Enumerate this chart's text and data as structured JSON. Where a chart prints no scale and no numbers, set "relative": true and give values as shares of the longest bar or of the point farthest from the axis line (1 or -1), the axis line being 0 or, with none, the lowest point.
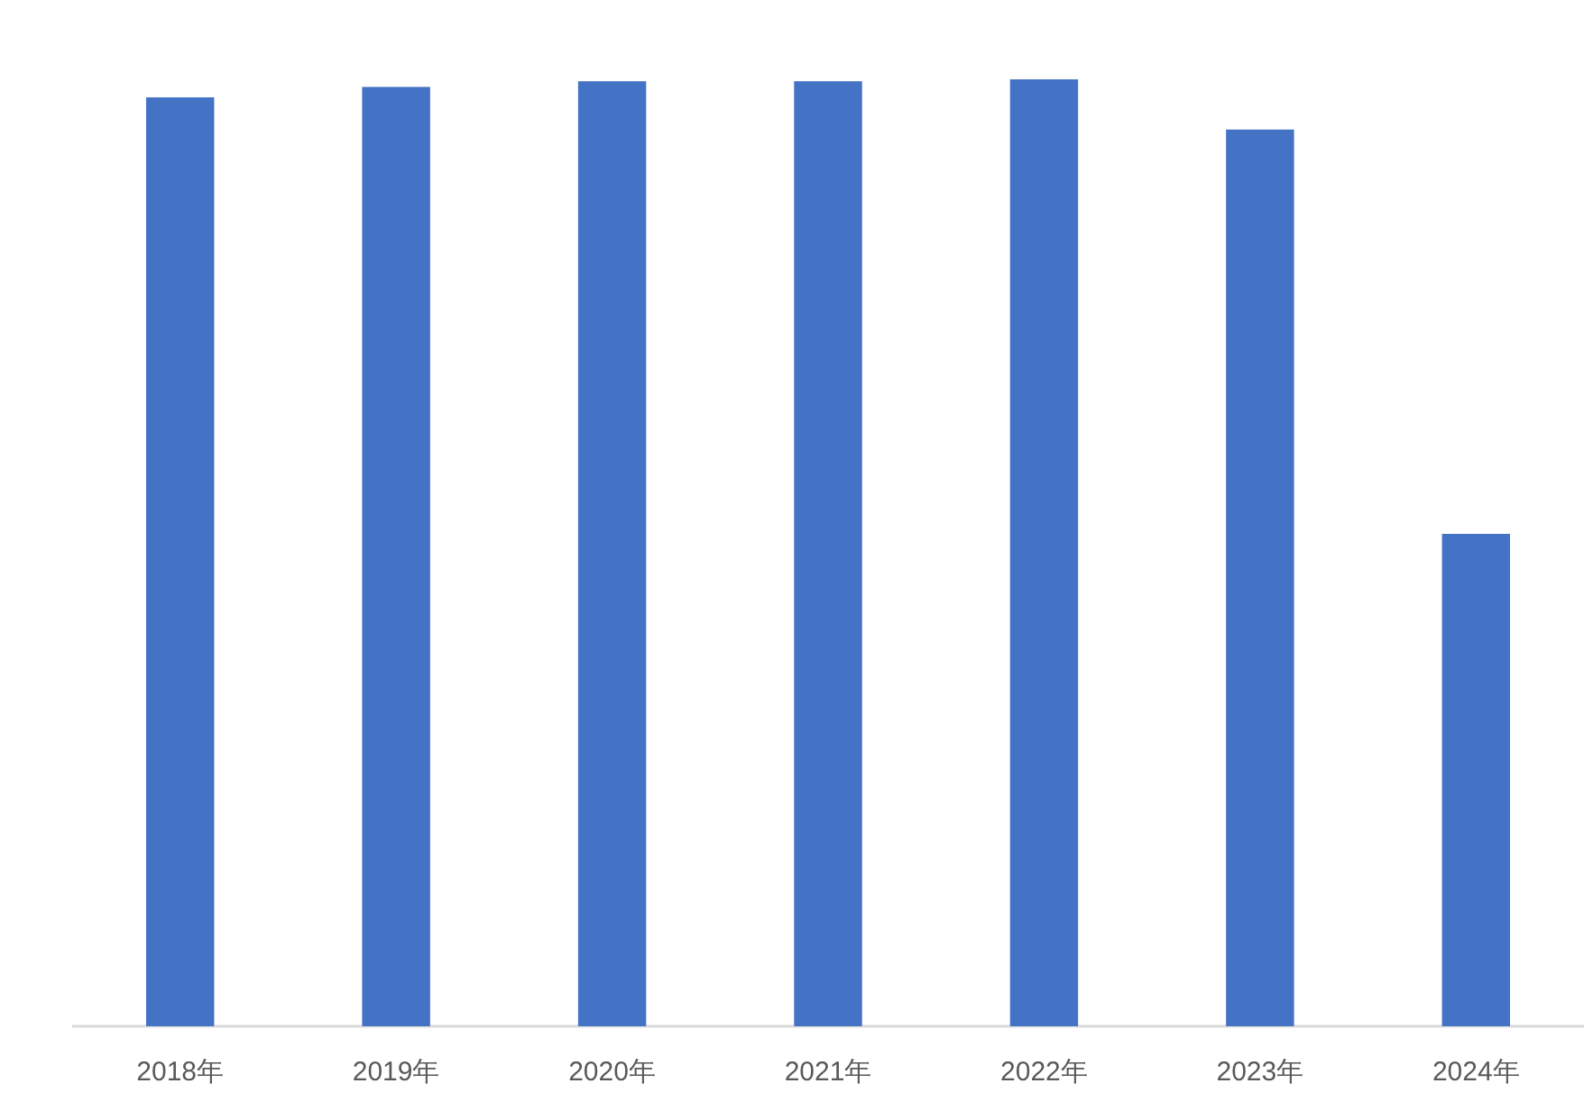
{
  "chart_data": {
    "type": "bar",
    "relative": true,
    "color": "#4472c4",
    "categories": [
      "2018年",
      "2019年",
      "2020年",
      "2021年",
      "2022年",
      "2023年",
      "2024年"
    ],
    "values": [
      0.981,
      0.992,
      0.998,
      0.998,
      1,
      0.947,
      0.52
    ]
  }
}
